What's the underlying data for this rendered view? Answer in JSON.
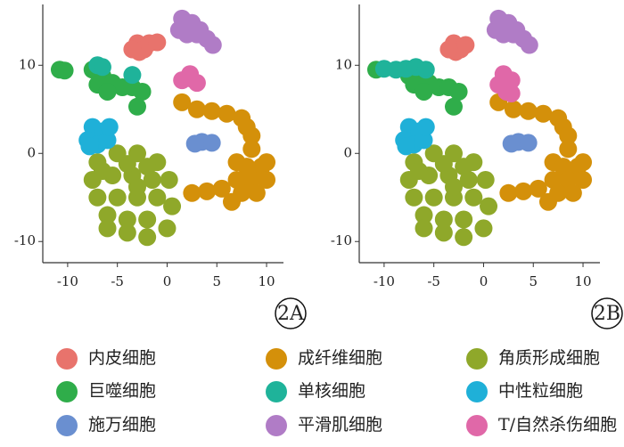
{
  "chart_data": [
    {
      "type": "scatter",
      "label": "2A",
      "xlim": [
        -12.5,
        11.7
      ],
      "ylim": [
        -12.4,
        16.9
      ],
      "xticks": [
        -10,
        -5,
        0,
        5,
        10
      ],
      "yticks": [
        -10,
        0,
        10
      ],
      "series": [
        {
          "name": "内皮细胞",
          "color": "#e8736c",
          "x": [
            -3,
            -2.3,
            -2.8,
            -1.8,
            -3.5,
            -1
          ],
          "y": [
            12.5,
            11.8,
            11.5,
            12.5,
            11.8,
            12.6
          ]
        },
        {
          "name": "成纤维细胞",
          "color": "#d4900a",
          "x": [
            1.5,
            3,
            4.5,
            6,
            7.5,
            8,
            8.5,
            8.5,
            7,
            8,
            9.5,
            7,
            8.5,
            10,
            7.5,
            9,
            10,
            2.5,
            4,
            5.5,
            6.5
          ],
          "y": [
            5.8,
            5,
            4.8,
            4.5,
            4,
            3,
            2,
            0.5,
            -1,
            -1.5,
            -1.5,
            -3,
            -3,
            -3,
            -4.5,
            -4.5,
            -1,
            -4.5,
            -4.3,
            -4,
            -5.5
          ]
        },
        {
          "name": "角质形成细胞",
          "color": "#8fa82a",
          "x": [
            -7,
            -5,
            -3,
            -1,
            -7.5,
            -5.5,
            -3.5,
            -1.5,
            0.2,
            -7,
            -5,
            -3,
            -1,
            0.5,
            -6,
            -4,
            -2,
            0,
            -4,
            -2,
            -6.5,
            -4,
            -2,
            -6,
            -3
          ],
          "y": [
            -1,
            0,
            0,
            -1,
            -3,
            -2.5,
            -2.5,
            -3,
            -3,
            -5,
            -5,
            -5,
            -5,
            -6,
            -7,
            -7.5,
            -7.5,
            -8.5,
            -9,
            -9.5,
            -2,
            -1.2,
            -1.5,
            -8.5,
            -3.8
          ]
        },
        {
          "name": "巨噬细胞",
          "color": "#2fad4a",
          "x": [
            -7.5,
            -6.5,
            -5.5,
            -4.5,
            -3.5,
            -2.5,
            -7,
            -6,
            -3,
            -10.8,
            -10.3
          ],
          "y": [
            9.5,
            8.8,
            8,
            7.5,
            7.5,
            7,
            7.8,
            7,
            5.3,
            9.5,
            9.4
          ]
        },
        {
          "name": "单核细胞",
          "color": "#1fb39a",
          "x": [
            -7,
            -6.5,
            -3.5
          ],
          "y": [
            10,
            9.8,
            8.9
          ]
        },
        {
          "name": "中性粒细胞",
          "color": "#1fb0d8",
          "x": [
            -7.5,
            -6.5,
            -8,
            -7,
            -6,
            -5.8,
            -7.8
          ],
          "y": [
            3,
            2.5,
            1.5,
            1,
            1.5,
            3,
            0.8
          ]
        },
        {
          "name": "施万细胞",
          "color": "#6a8fd0",
          "x": [
            3.5,
            4.5,
            2.8
          ],
          "y": [
            1.3,
            1.2,
            1.1
          ]
        },
        {
          "name": "平滑肌细胞",
          "color": "#b07cc6",
          "x": [
            1.5,
            2.5,
            3.3,
            4,
            4.6,
            1.2,
            2,
            3
          ],
          "y": [
            15.3,
            14.8,
            14,
            13,
            12.3,
            14,
            13.5,
            13.5
          ]
        },
        {
          "name": "T/自然杀伤细胞",
          "color": "#e068a8",
          "x": [
            2.4,
            1.5,
            3,
            2.3
          ],
          "y": [
            8.5,
            8.3,
            8,
            9
          ]
        }
      ]
    },
    {
      "type": "scatter",
      "label": "2B",
      "xlim": [
        -12.5,
        11.7
      ],
      "ylim": [
        -12.4,
        16.9
      ],
      "xticks": [
        -10,
        -5,
        0,
        5,
        10
      ],
      "yticks": [
        -10,
        0,
        10
      ],
      "series": [
        {
          "color": "#e8736c",
          "x": [
            -3,
            -2.3,
            -2.8,
            -1.8,
            -3.5
          ],
          "y": [
            12.5,
            11.8,
            11.5,
            12.3,
            11.8
          ]
        },
        {
          "color": "#d4900a",
          "x": [
            1.5,
            3,
            4.5,
            6,
            7.5,
            8,
            8.5,
            8.5,
            7,
            8,
            9.5,
            7,
            8.5,
            10,
            7.5,
            9,
            10,
            2.5,
            4,
            5.5,
            6.5
          ],
          "y": [
            5.8,
            5,
            4.8,
            4.5,
            4,
            3,
            2,
            0.5,
            -1,
            -1.5,
            -1.5,
            -3,
            -3,
            -3,
            -4.5,
            -4.5,
            -1,
            -4.5,
            -4.3,
            -4,
            -5.5
          ]
        },
        {
          "color": "#8fa82a",
          "x": [
            -7,
            -5,
            -3,
            -1,
            -7.5,
            -5.5,
            -3.5,
            -1.5,
            0.2,
            -7,
            -5,
            -3,
            -1,
            0.5,
            -6,
            -4,
            -2,
            0,
            -4,
            -2,
            -6.5,
            -4,
            -2,
            -6,
            -3
          ],
          "y": [
            -1,
            0,
            0,
            -1,
            -3,
            -2.5,
            -2.5,
            -3,
            -3,
            -5,
            -5,
            -5,
            -5,
            -6,
            -7,
            -7.5,
            -7.5,
            -8.5,
            -9,
            -9.5,
            -2,
            -1.2,
            -1.5,
            -8.5,
            -3.8
          ]
        },
        {
          "color": "#2fad4a",
          "x": [
            -7.5,
            -6.5,
            -5.5,
            -4.5,
            -3.5,
            -2.5,
            -7,
            -6,
            -3,
            -10.8
          ],
          "y": [
            8.8,
            8.3,
            8,
            7.5,
            7.5,
            7,
            7.8,
            7,
            5.3,
            9.5
          ]
        },
        {
          "color": "#1fb39a",
          "x": [
            -10,
            -8.8,
            -7.8,
            -6.8,
            -5.8
          ],
          "y": [
            9.6,
            9.5,
            9.6,
            9.8,
            9.5
          ]
        },
        {
          "color": "#1fb0d8",
          "x": [
            -7.5,
            -6.5,
            -8,
            -7,
            -6,
            -5.8,
            -7.8
          ],
          "y": [
            3,
            2.5,
            1.5,
            1,
            1.5,
            3,
            0.8
          ]
        },
        {
          "color": "#6a8fd0",
          "x": [
            3.5,
            4.5,
            2.8
          ],
          "y": [
            1.3,
            1.2,
            1.1
          ]
        },
        {
          "color": "#b07cc6",
          "x": [
            1.5,
            2.5,
            3.3,
            4,
            4.6,
            1.2,
            2,
            3
          ],
          "y": [
            15.3,
            14.8,
            14,
            13,
            12.3,
            14,
            13.5,
            13.5
          ]
        },
        {
          "color": "#e068a8",
          "x": [
            2,
            2.8,
            1.5,
            2.3,
            2.8
          ],
          "y": [
            9,
            8.3,
            7.8,
            7,
            6.8
          ]
        }
      ]
    }
  ]
}
